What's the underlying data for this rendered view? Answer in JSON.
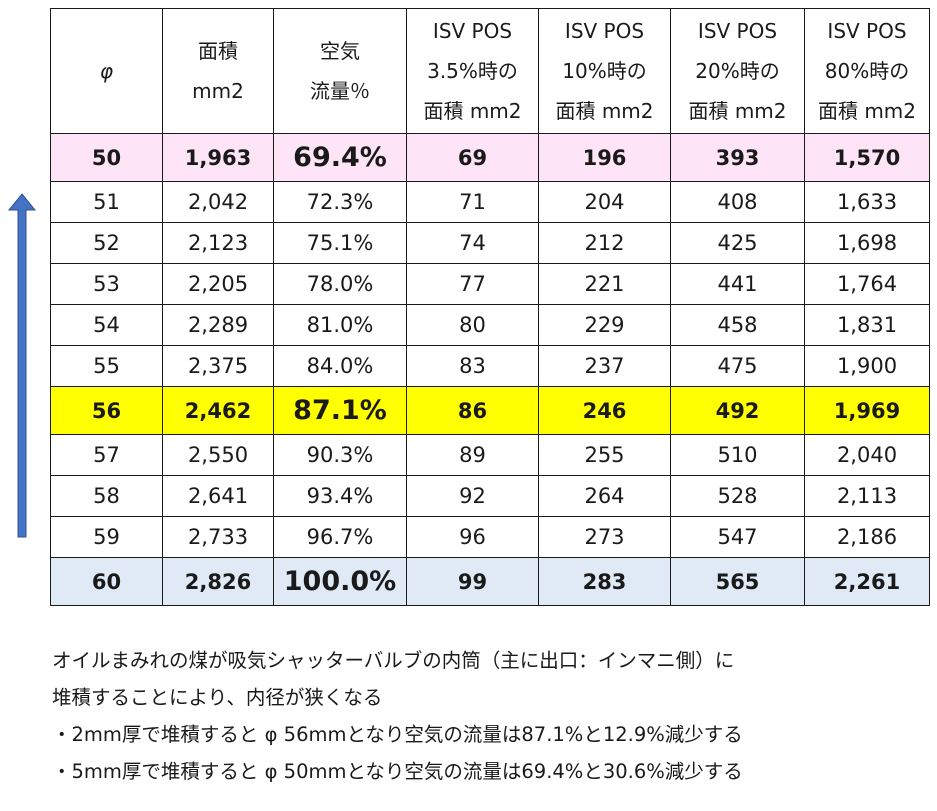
{
  "table": {
    "headers": [
      [
        "φ"
      ],
      [
        "面積",
        "mm2"
      ],
      [
        "空気",
        "流量％"
      ],
      [
        "ISV POS",
        "3.5%時の",
        "面積 mm2"
      ],
      [
        "ISV POS",
        "10%時の",
        "面積 mm2"
      ],
      [
        "ISV POS",
        "20%時の",
        "面積 mm2"
      ],
      [
        "ISV POS",
        "80%時の",
        "面積 mm2"
      ]
    ],
    "rows": [
      [
        "50",
        "1,963",
        "69.4%",
        "69",
        "196",
        "393",
        "1,570"
      ],
      [
        "51",
        "2,042",
        "72.3%",
        "71",
        "204",
        "408",
        "1,633"
      ],
      [
        "52",
        "2,123",
        "75.1%",
        "74",
        "212",
        "425",
        "1,698"
      ],
      [
        "53",
        "2,205",
        "78.0%",
        "77",
        "221",
        "441",
        "1,764"
      ],
      [
        "54",
        "2,289",
        "81.0%",
        "80",
        "229",
        "458",
        "1,831"
      ],
      [
        "55",
        "2,375",
        "84.0%",
        "83",
        "237",
        "475",
        "1,900"
      ],
      [
        "56",
        "2,462",
        "87.1%",
        "86",
        "246",
        "492",
        "1,969"
      ],
      [
        "57",
        "2,550",
        "90.3%",
        "89",
        "255",
        "510",
        "2,040"
      ],
      [
        "58",
        "2,641",
        "93.4%",
        "92",
        "264",
        "528",
        "2,113"
      ],
      [
        "59",
        "2,733",
        "96.7%",
        "96",
        "273",
        "547",
        "2,186"
      ],
      [
        "60",
        "2,826",
        "100.0%",
        "99",
        "283",
        "565",
        "2,261"
      ]
    ],
    "highlights": [
      {
        "row": 0,
        "style": "row-pink",
        "color": "#fde4f7"
      },
      {
        "row": 6,
        "style": "row-yellow",
        "color": "#ffff00"
      },
      {
        "row": 10,
        "style": "row-blue",
        "color": "#dfeaf6"
      }
    ]
  },
  "arrow": {
    "icon": "up-arrow-icon",
    "color": "#4472c4"
  },
  "notes": [
    "オイルまみれの煤が吸気シャッターバルブの内筒（主に出口：インマニ側）に",
    "堆積することにより、内径が狭くなる",
    "・2mm厚で堆積すると φ 56mmとなり空気の流量は87.1%と12.9%減少する",
    "・5mm厚で堆積すると φ 50mmとなり空気の流量は69.4%と30.6%減少する"
  ]
}
